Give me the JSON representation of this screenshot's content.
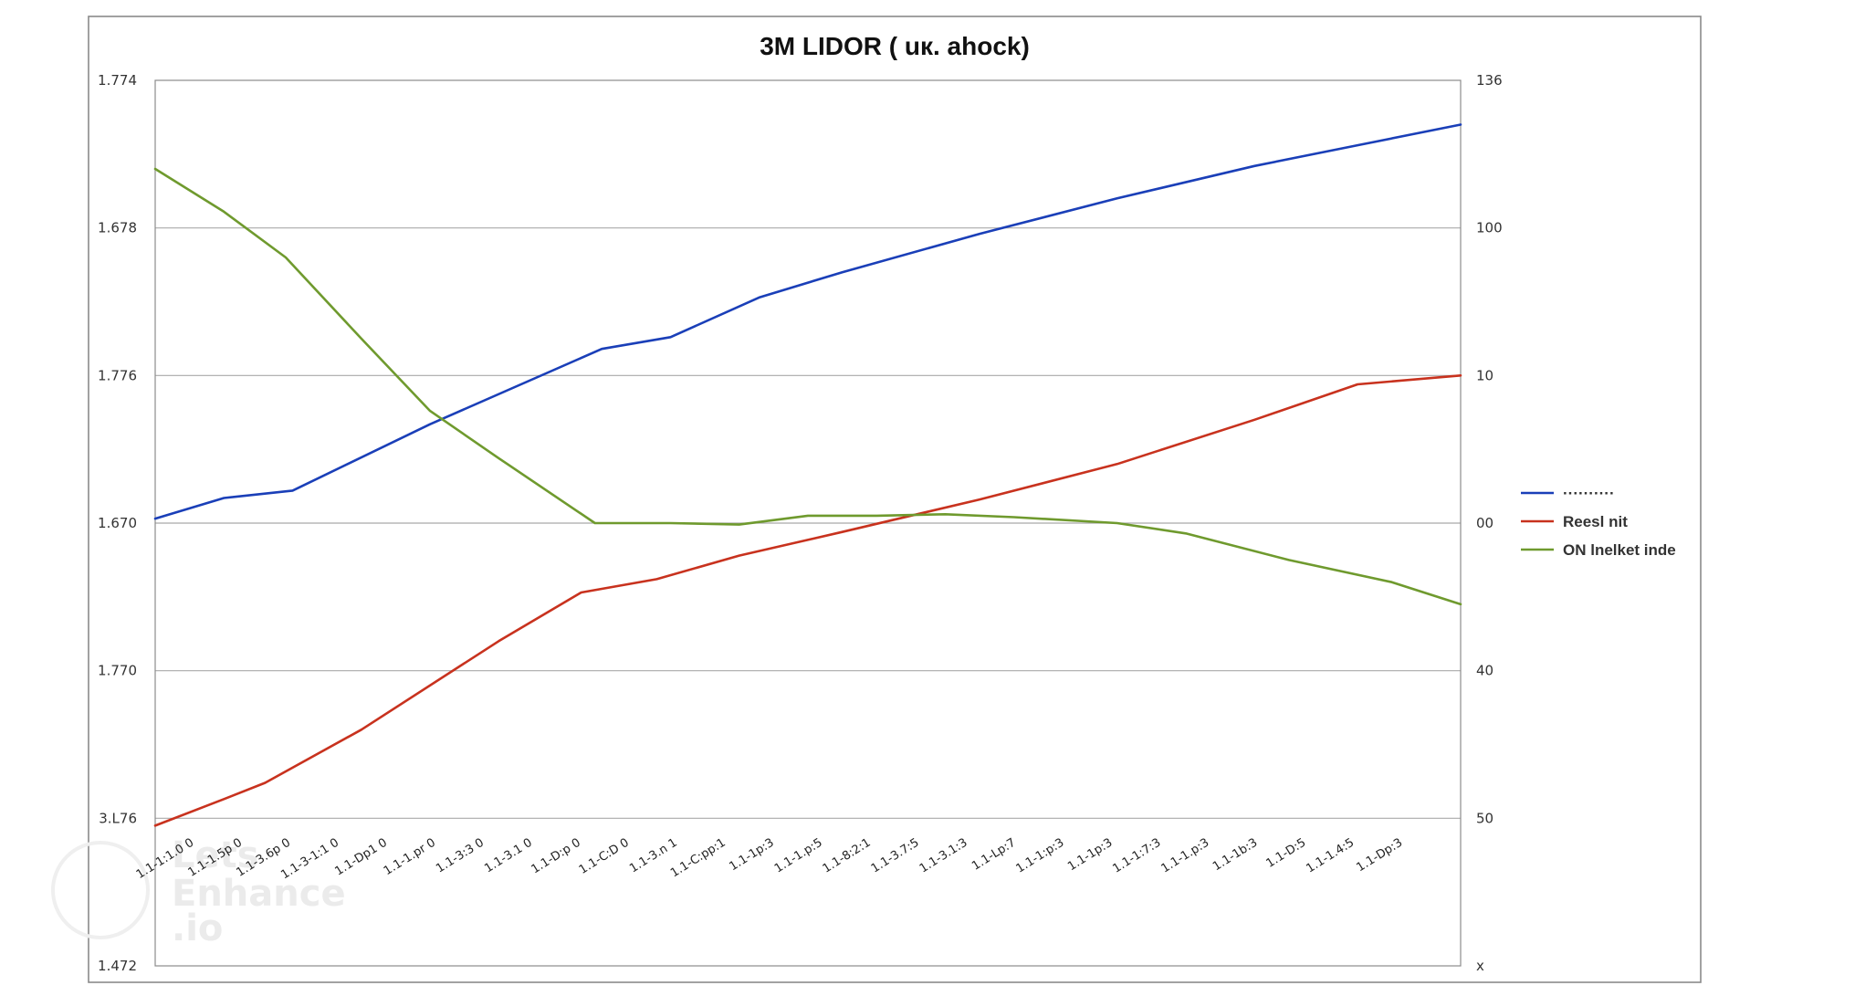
{
  "chart_data": {
    "type": "line",
    "title": "3M LIDOR ( uк. ahock)",
    "xlabel": "",
    "ylabel": "",
    "grid": true,
    "legend_position": "right",
    "y_left_ticks": [
      "1.774",
      "1.678",
      "1.776",
      "1.670",
      "1.770",
      "3.L76",
      "1.472"
    ],
    "y_right_ticks": [
      "136",
      "100",
      "10",
      "00",
      "40",
      "50",
      "x"
    ],
    "y_range": [
      0,
      6
    ],
    "x_range": [
      0,
      19
    ],
    "x_tick_labels": [
      "1.1-1:1.0 0",
      "1.1-1.5p 0",
      "1.1-3.6p 0",
      "1.1-3-1:1 0",
      "1.1-Dp1 0",
      "1.1-1.pr 0",
      "1.1-3:3 0",
      "1.1-3.1 0",
      "1.1-D:p 0",
      "1.1-C:D 0",
      "1.1-3.n 1",
      "1.1-C:pp:1",
      "1.1-1p:3",
      "1.1-1.p:5",
      "1.1-8:2:1",
      "1.1-3.7:5",
      "1.1-3.1:3",
      "1.1-Lp:7",
      "1.1-1:p:3",
      "1.1-1p:3",
      "1.1-1:7:3",
      "1.1-1.p:3",
      "1.1-1b:3",
      "1.1-D:5",
      "1.1-1.4:5",
      "1.1-Dp:3"
    ],
    "series": [
      {
        "name": "",
        "legend_label": "··········",
        "color": "#1a3fb8",
        "x": [
          0,
          1,
          2,
          4,
          6.5,
          7.5,
          8.8,
          10,
          12,
          14,
          16,
          17.5,
          19
        ],
        "y": [
          3.03,
          3.17,
          3.22,
          3.67,
          4.18,
          4.26,
          4.53,
          4.7,
          4.96,
          5.2,
          5.42,
          5.56,
          5.7
        ]
      },
      {
        "name": "Reesl nit",
        "legend_label": "Reesl nit",
        "color": "#c8321e",
        "x": [
          0,
          1,
          1.6,
          3,
          5,
          6.2,
          7.3,
          8.5,
          10,
          12,
          14,
          16,
          17.5,
          19
        ],
        "y": [
          0.95,
          1.13,
          1.24,
          1.6,
          2.2,
          2.53,
          2.62,
          2.78,
          2.94,
          3.16,
          3.4,
          3.7,
          3.94,
          4.0
        ]
      },
      {
        "name": "ON lnelket inde",
        "legend_label": "ON lnelket inde",
        "color": "#6f9a2e",
        "x": [
          0,
          1,
          1.9,
          3,
          4,
          5,
          6.4,
          7.5,
          8.5,
          9.5,
          10.5,
          11.5,
          12.5,
          14,
          15,
          16.5,
          18,
          19
        ],
        "y": [
          5.4,
          5.11,
          4.8,
          4.25,
          3.76,
          3.44,
          3.0,
          3.0,
          2.99,
          3.05,
          3.05,
          3.06,
          3.04,
          3.0,
          2.93,
          2.75,
          2.6,
          2.45
        ]
      }
    ]
  },
  "watermark": {
    "line1": "Lets",
    "line2": "Enhance",
    "line3": ".io"
  }
}
